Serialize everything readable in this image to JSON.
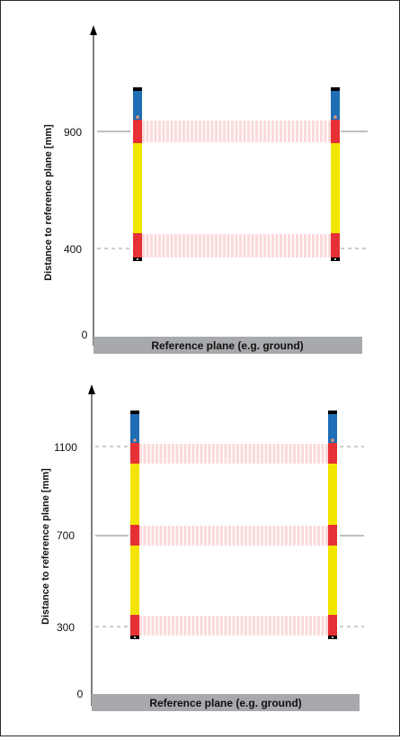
{
  "diagrams": [
    {
      "ylabel": "Distance to reference plane [mm]",
      "ground_label": "Reference plane (e.g. ground)",
      "zero_label": "0",
      "ticks": [
        "900",
        "400"
      ]
    },
    {
      "ylabel": "Distance to reference plane [mm]",
      "ground_label": "Reference plane (e.g. ground)",
      "zero_label": "0",
      "ticks": [
        "1100",
        "700",
        "300"
      ]
    }
  ],
  "colors": {
    "frame": "#2b2b2b",
    "axis": "#000000",
    "ground": "#a7a9ac",
    "column_blue": "#1f6db4",
    "column_red": "#e63035",
    "column_yellow": "#f2e500",
    "column_cap": "#000000",
    "beam": "#f06c6c",
    "indicator": "#e39a7a"
  },
  "icons": [
    "up-arrow-icon"
  ]
}
